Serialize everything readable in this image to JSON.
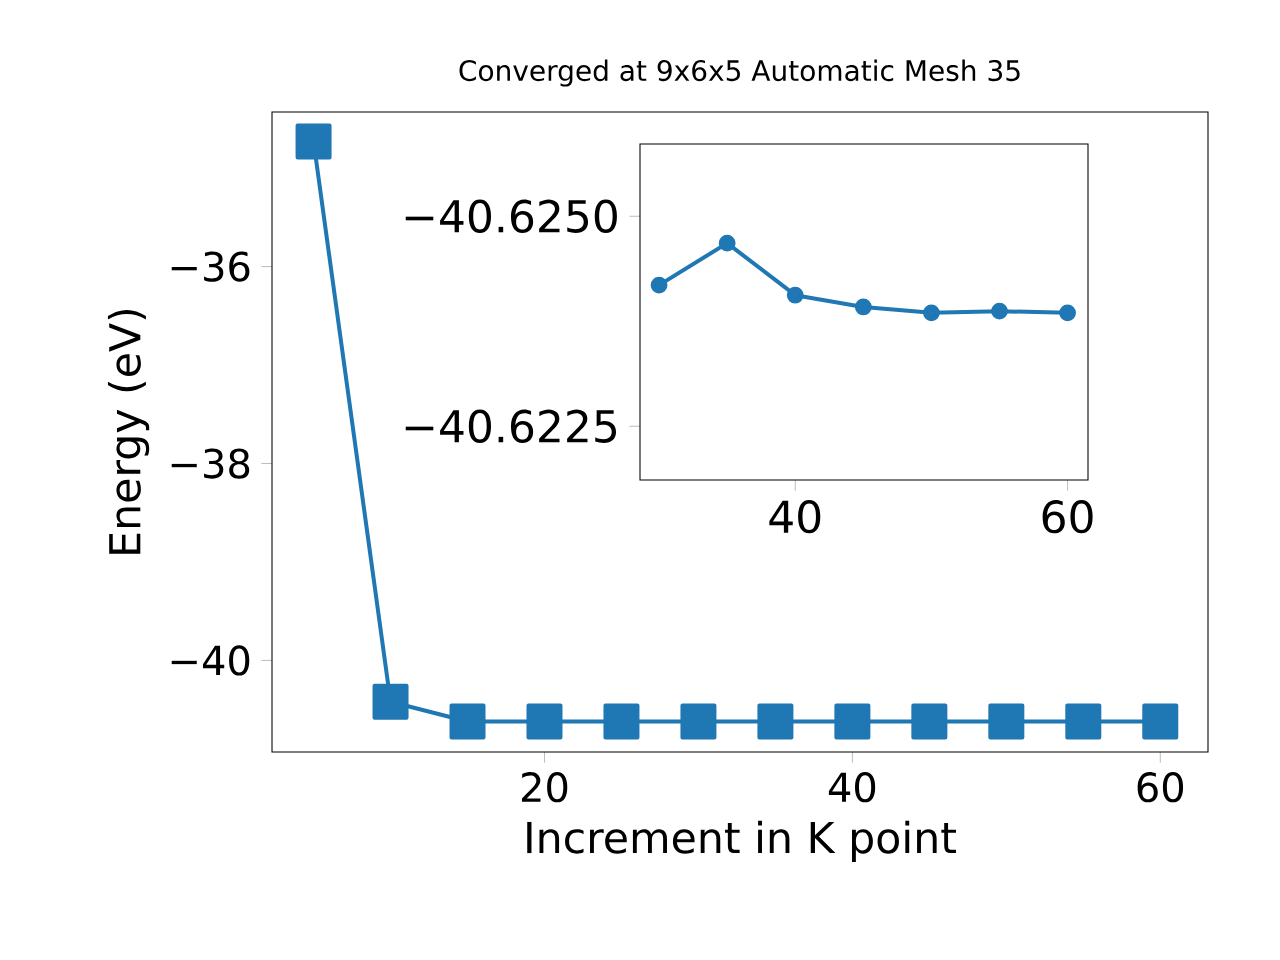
{
  "chart_data": [
    {
      "type": "line",
      "title": "Converged at 9x6x5 Automatic Mesh 35",
      "xlabel": "Increment in K point",
      "ylabel": "Energy (eV)",
      "x": [
        5,
        10,
        15,
        20,
        25,
        30,
        35,
        40,
        45,
        50,
        55,
        60
      ],
      "series": [
        {
          "color": "#1f77b4",
          "values": [
            -34.73,
            -40.42,
            -40.62,
            -40.62,
            -40.62,
            -40.62,
            -40.62,
            -40.62,
            -40.62,
            -40.62,
            -40.62,
            -40.62
          ]
        }
      ],
      "xlim": [
        2.3,
        63.1
      ],
      "ylim": [
        -40.93,
        -34.43
      ],
      "xticks": [
        20,
        40,
        60
      ],
      "yticks": [
        {
          "value": -40,
          "label": "−40"
        },
        {
          "value": -38,
          "label": "−38"
        },
        {
          "value": -36,
          "label": "−36"
        }
      ],
      "marker": "square",
      "line_style": "solid",
      "grid": false
    },
    {
      "type": "line",
      "x": [
        30,
        35,
        40,
        45,
        50,
        55,
        60
      ],
      "series": [
        {
          "color": "#1f77b4",
          "values": [
            -40.62418,
            -40.62468,
            -40.62406,
            -40.62392,
            -40.62385,
            -40.62387,
            -40.62385
          ]
        }
      ],
      "xlim": [
        28.6,
        61.5
      ],
      "ylim": [
        -40.62186,
        -40.62586
      ],
      "xticks": [
        40,
        60
      ],
      "yticks": [
        {
          "value": -40.6225,
          "label": "−40.6225"
        },
        {
          "value": -40.625,
          "label": "−40.6250"
        }
      ],
      "marker": "circle",
      "line_style": "solid",
      "grid": false
    }
  ]
}
